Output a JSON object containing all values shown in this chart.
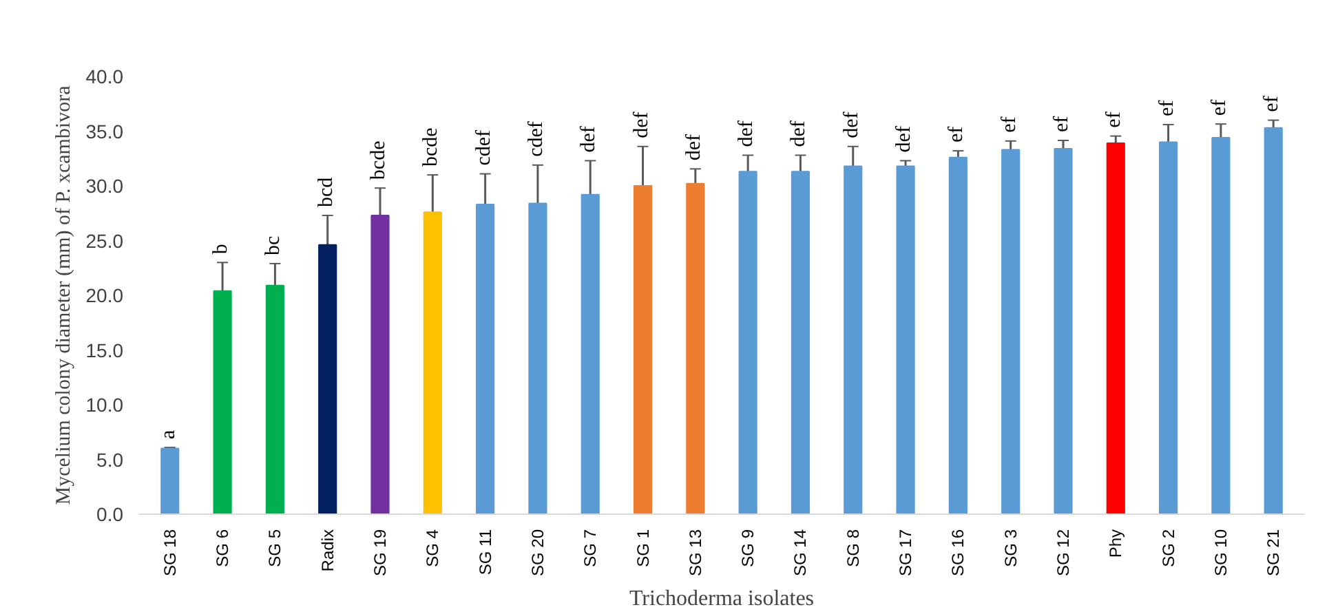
{
  "chart_data": {
    "type": "bar",
    "xlabel": "Trichoderma isolates",
    "ylabel": "Mycelium colony diameter (mm) of P. xcambivora",
    "categories": [
      "SG 18",
      "SG 6",
      "SG 5",
      "Radix",
      "SG 19",
      "SG 4",
      "SG 11",
      "SG 20",
      "SG 7",
      "SG 1",
      "SG 13",
      "SG 9",
      "SG 14",
      "SG 8",
      "SG 17",
      "SG 16",
      "SG 3",
      "SG 12",
      "Phy",
      "SG 2",
      "SG 10",
      "SG 21"
    ],
    "values": [
      6.0,
      20.4,
      20.9,
      24.6,
      27.3,
      27.6,
      28.3,
      28.4,
      29.2,
      30.0,
      30.2,
      31.3,
      31.3,
      31.8,
      31.8,
      32.6,
      33.3,
      33.4,
      33.9,
      34.0,
      34.4,
      35.3
    ],
    "errors": [
      0.1,
      2.6,
      2.0,
      2.7,
      2.5,
      3.4,
      2.8,
      3.5,
      3.1,
      3.6,
      1.35,
      1.5,
      1.5,
      1.8,
      0.5,
      0.6,
      0.8,
      0.75,
      0.65,
      1.6,
      1.25,
      0.7
    ],
    "colors": [
      "#5b9bd5",
      "#00b050",
      "#00b050",
      "#002060",
      "#7030a0",
      "#ffc000",
      "#5b9bd5",
      "#5b9bd5",
      "#5b9bd5",
      "#ed7d31",
      "#ed7d31",
      "#5b9bd5",
      "#5b9bd5",
      "#5b9bd5",
      "#5b9bd5",
      "#5b9bd5",
      "#5b9bd5",
      "#5b9bd5",
      "#ff0000",
      "#5b9bd5",
      "#5b9bd5",
      "#5b9bd5"
    ],
    "value_labels": [
      "a",
      "b",
      "bc",
      "bcd",
      "bcde",
      "bcde",
      "cdef",
      "cdef",
      "def",
      "def",
      "def",
      "def",
      "def",
      "def",
      "def",
      "ef",
      "ef",
      "ef",
      "ef",
      "ef",
      "ef",
      "ef"
    ],
    "ylim": [
      0,
      40
    ],
    "yticks": [
      {
        "value": 0,
        "label": "0.0"
      },
      {
        "value": 5,
        "label": "5.0"
      },
      {
        "value": 10,
        "label": "10.0"
      },
      {
        "value": 15,
        "label": "15.0"
      },
      {
        "value": 20,
        "label": "20.0"
      },
      {
        "value": 25,
        "label": "25.0"
      },
      {
        "value": 30,
        "label": "30.0"
      },
      {
        "value": 35,
        "label": "35.0"
      },
      {
        "value": 40,
        "label": "40.0"
      }
    ],
    "grid": false
  }
}
